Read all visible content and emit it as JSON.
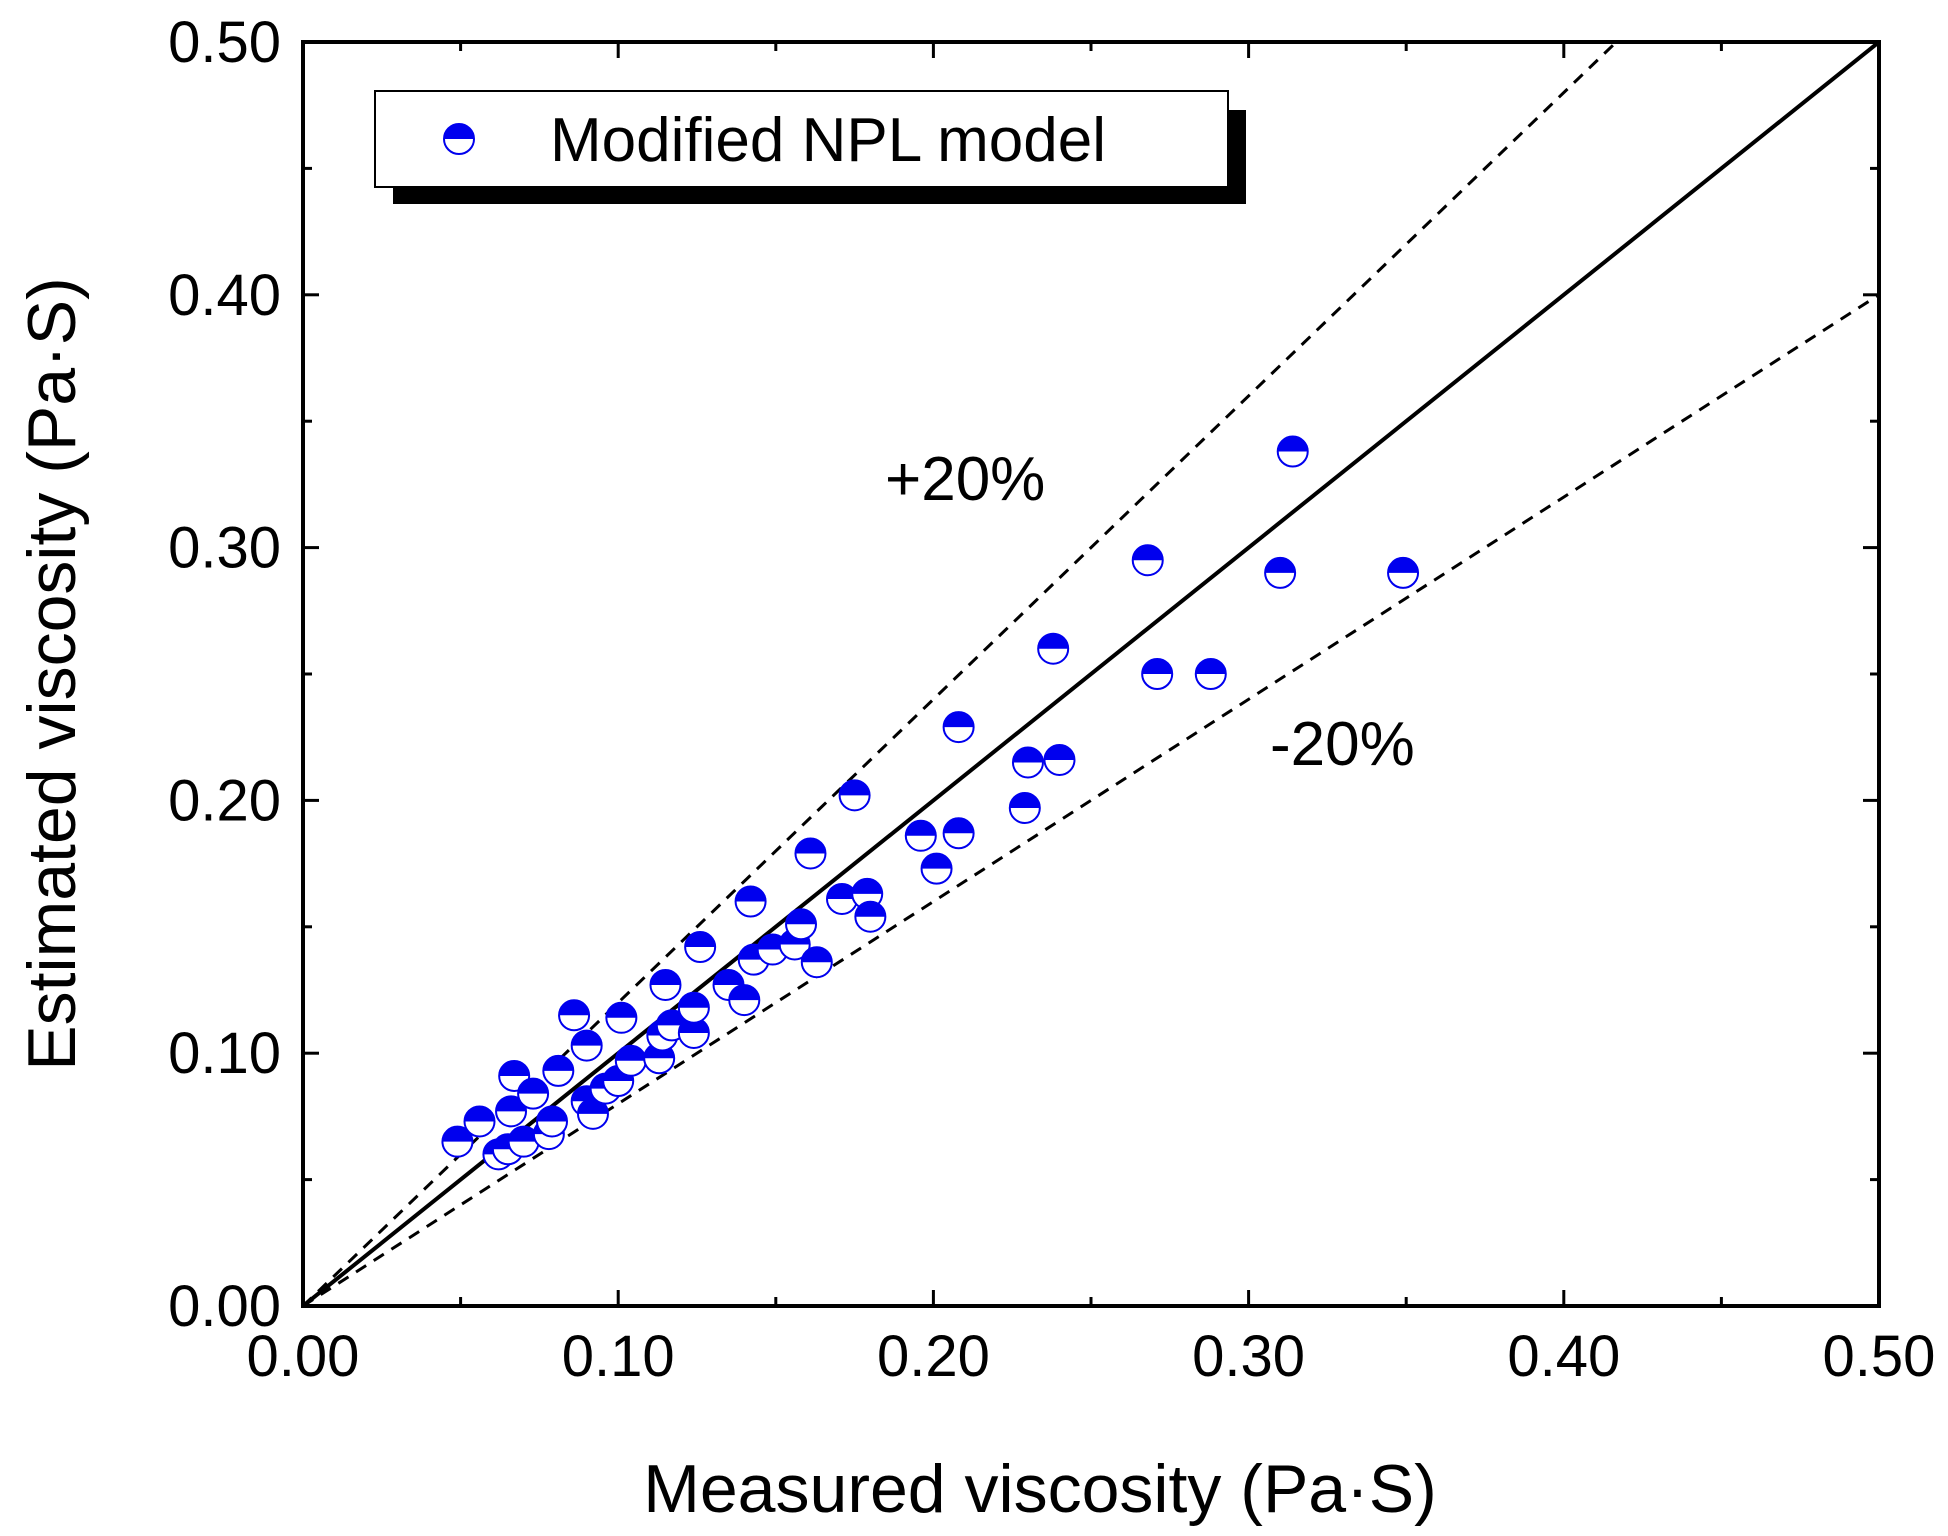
{
  "chart_data": {
    "type": "scatter",
    "xlabel": "Measured viscosity (Pa·S)",
    "ylabel": "Estimated viscosity (Pa·S)",
    "xlim": [
      0,
      0.5
    ],
    "ylim": [
      0,
      0.5
    ],
    "x_ticks": [
      "0.00",
      "0.10",
      "0.20",
      "0.30",
      "0.40",
      "0.50"
    ],
    "y_ticks": [
      "0.00",
      "0.10",
      "0.20",
      "0.30",
      "0.40",
      "0.50"
    ],
    "tick_values": [
      0,
      0.1,
      0.2,
      0.3,
      0.4,
      0.5
    ],
    "minor_tick_values": [
      0.05,
      0.15,
      0.25,
      0.35,
      0.45
    ],
    "legend": {
      "label": "Modified NPL model",
      "position": "top-left"
    },
    "marker_color": "#0000ee",
    "lines": [
      {
        "name": "y = x",
        "slope": 1.0,
        "style": "solid"
      },
      {
        "name": "+20%",
        "slope": 1.2,
        "style": "dashed"
      },
      {
        "name": "-20%",
        "slope": 0.8,
        "style": "dashed"
      }
    ],
    "annotations": [
      {
        "text": "+20%",
        "x": 0.185,
        "y": 0.325
      },
      {
        "text": "-20%",
        "x": 0.305,
        "y": 0.215
      }
    ],
    "series": [
      {
        "name": "Modified NPL model",
        "points": [
          [
            0.049,
            0.065
          ],
          [
            0.056,
            0.073
          ],
          [
            0.062,
            0.06
          ],
          [
            0.065,
            0.062
          ],
          [
            0.066,
            0.077
          ],
          [
            0.067,
            0.091
          ],
          [
            0.07,
            0.065
          ],
          [
            0.073,
            0.084
          ],
          [
            0.078,
            0.068
          ],
          [
            0.079,
            0.073
          ],
          [
            0.081,
            0.093
          ],
          [
            0.086,
            0.115
          ],
          [
            0.09,
            0.081
          ],
          [
            0.09,
            0.103
          ],
          [
            0.092,
            0.076
          ],
          [
            0.096,
            0.086
          ],
          [
            0.1,
            0.089
          ],
          [
            0.101,
            0.114
          ],
          [
            0.104,
            0.097
          ],
          [
            0.113,
            0.098
          ],
          [
            0.114,
            0.107
          ],
          [
            0.115,
            0.127
          ],
          [
            0.117,
            0.111
          ],
          [
            0.124,
            0.108
          ],
          [
            0.124,
            0.118
          ],
          [
            0.126,
            0.142
          ],
          [
            0.135,
            0.127
          ],
          [
            0.14,
            0.121
          ],
          [
            0.142,
            0.16
          ],
          [
            0.143,
            0.137
          ],
          [
            0.149,
            0.141
          ],
          [
            0.156,
            0.143
          ],
          [
            0.158,
            0.151
          ],
          [
            0.161,
            0.179
          ],
          [
            0.163,
            0.136
          ],
          [
            0.171,
            0.161
          ],
          [
            0.175,
            0.202
          ],
          [
            0.179,
            0.163
          ],
          [
            0.18,
            0.154
          ],
          [
            0.196,
            0.186
          ],
          [
            0.201,
            0.173
          ],
          [
            0.208,
            0.187
          ],
          [
            0.208,
            0.229
          ],
          [
            0.229,
            0.197
          ],
          [
            0.23,
            0.215
          ],
          [
            0.238,
            0.26
          ],
          [
            0.24,
            0.216
          ],
          [
            0.268,
            0.295
          ],
          [
            0.271,
            0.25
          ],
          [
            0.288,
            0.25
          ],
          [
            0.31,
            0.29
          ],
          [
            0.314,
            0.338
          ],
          [
            0.349,
            0.29
          ]
        ]
      }
    ]
  }
}
